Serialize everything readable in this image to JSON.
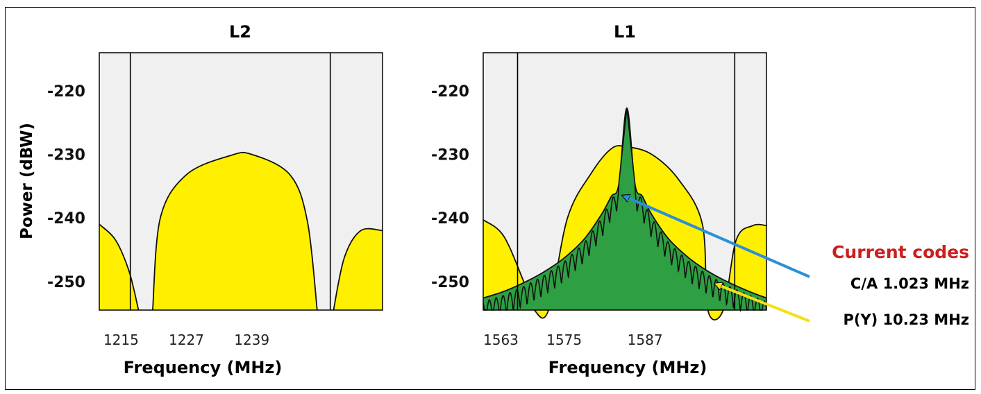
{
  "chart_data": [
    {
      "type": "area",
      "title": "L2",
      "xlabel": "Frequency (MHz)",
      "ylabel": "Power (dBW)",
      "xlim": [
        1211,
        1263
      ],
      "ylim": [
        -254.5,
        -214
      ],
      "x_ticks": [
        1215,
        1227,
        1239
      ],
      "y_ticks": [
        -220,
        -230,
        -240,
        -250
      ],
      "band_edges": [
        1216.7,
        1253.4
      ],
      "grid": false,
      "series": [
        {
          "points": [
            [
              1211,
              -241
            ],
            [
              1214,
              -243.5
            ],
            [
              1216.5,
              -248.5
            ],
            [
              1218.2,
              -254.5
            ]
          ]
        },
        {
          "points": [
            [
              1220.8,
              -254.5
            ],
            [
              1222.2,
              -240.0
            ],
            [
              1227,
              -233.2
            ],
            [
              1235,
              -230.2
            ],
            [
              1239,
              -230.0
            ],
            [
              1246,
              -233.2
            ],
            [
              1249.2,
              -240.5
            ],
            [
              1251,
              -254.5
            ]
          ]
        },
        {
          "points": [
            [
              1254,
              -254.5
            ],
            [
              1256,
              -246.2
            ],
            [
              1259,
              -242.0
            ],
            [
              1263,
              -242.0
            ]
          ]
        }
      ]
    },
    {
      "type": "area",
      "title": "L1",
      "xlabel": "Frequency (MHz)",
      "ylabel": "",
      "xlim": [
        1563,
        1605
      ],
      "ylim": [
        -254.5,
        -214
      ],
      "x_ticks": [
        1563,
        1575,
        1587
      ],
      "y_ticks": [
        -220,
        -230,
        -240,
        -250
      ],
      "band_edges": [
        1568.1,
        1600.3
      ],
      "grid": false,
      "series": [
        {
          "name": "P(Y) 10.23 MHz",
          "points": [
            [
              1563,
              -240.3
            ],
            [
              1566,
              -242.8
            ],
            [
              1569,
              -250.0
            ],
            [
              1570.6,
              -254.5
            ],
            [
              1572.7,
              -254.5
            ],
            [
              1575.5,
              -240.0
            ],
            [
              1579,
              -233.0
            ],
            [
              1582,
              -229.1
            ],
            [
              1584.3,
              -228.8
            ],
            [
              1588,
              -230.0
            ],
            [
              1592,
              -234.0
            ],
            [
              1595.5,
              -241.0
            ],
            [
              1596.3,
              -254.5
            ],
            [
              1598.6,
              -254.5
            ],
            [
              1600.5,
              -243.5
            ],
            [
              1603,
              -241.2
            ],
            [
              1605,
              -241.2
            ]
          ]
        },
        {
          "name": "C/A 1.023 MHz",
          "points": [
            [
              1563,
              -252.6
            ],
            [
              1566,
              -251.6
            ],
            [
              1569,
              -250.2
            ],
            [
              1572,
              -248.5
            ],
            [
              1575,
              -246.3
            ],
            [
              1578,
              -243.3
            ],
            [
              1580.5,
              -239.5
            ],
            [
              1582,
              -236.6
            ],
            [
              1583.1,
              -234.7
            ],
            [
              1584.3,
              -222.7
            ],
            [
              1585.5,
              -234.7
            ],
            [
              1586.6,
              -236.6
            ],
            [
              1588,
              -239.5
            ],
            [
              1590.5,
              -243.3
            ],
            [
              1593.5,
              -246.3
            ],
            [
              1596.5,
              -248.5
            ],
            [
              1599.5,
              -250.2
            ],
            [
              1602.5,
              -251.6
            ],
            [
              1605,
              -252.6
            ]
          ]
        }
      ]
    }
  ],
  "annotations": {
    "current_codes": "Current codes",
    "ca_label": "C/A 1.023 MHz",
    "py_label": "P(Y) 10.23 MHz"
  },
  "colors": {
    "background": "#f0f0f0",
    "py_fill": "#fff000",
    "ca_fill": "#2ea043",
    "ca_arrow": "#2a8fd6",
    "py_arrow": "#f3e016",
    "heading": "#cc1f1f"
  }
}
